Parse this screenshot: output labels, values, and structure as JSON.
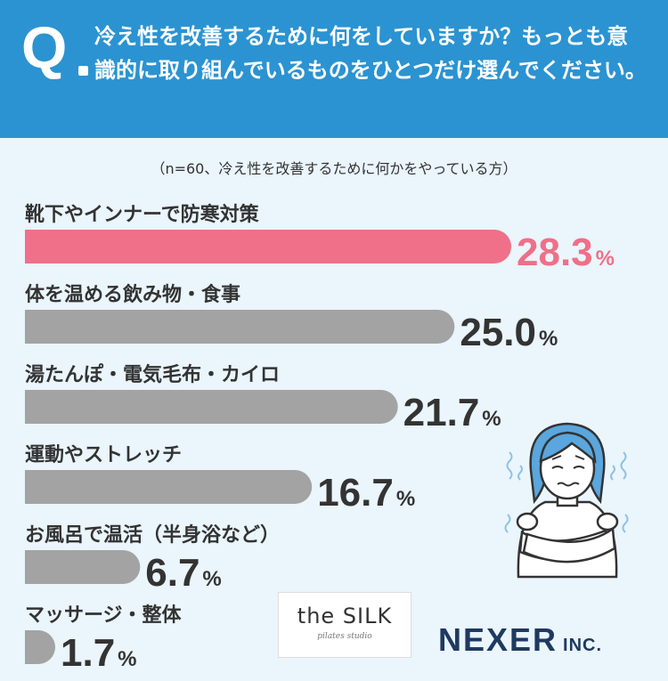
{
  "header": {
    "q_mark": "Q",
    "question": "冷え性を改善するために何をしていますか？もっとも意識的に取り組んでいるものをひとつだけ選んでください。"
  },
  "sample_note": "（n=60、冷え性を改善するために何かをやっている方）",
  "colors": {
    "header_bg": "#2b93d1",
    "page_bg": "#eaf5fc",
    "highlight": "#ef7088",
    "bar_default": "#a3a3a3",
    "brand_navy": "#1f3a5f"
  },
  "chart_data": {
    "type": "bar",
    "orientation": "horizontal",
    "categories": [
      "靴下やインナーで防寒対策",
      "体を温める飲み物・食事",
      "湯たんぽ・電気毛布・カイロ",
      "運動やストレッチ",
      "お風呂で温活（半身浴など）",
      "マッサージ・整体"
    ],
    "values": [
      28.3,
      25.0,
      21.7,
      16.7,
      6.7,
      1.7
    ],
    "value_labels": [
      "28.3",
      "25.0",
      "21.7",
      "16.7",
      "6.7",
      "1.7"
    ],
    "unit": "%",
    "highlight_index": 0
  },
  "logos": {
    "silk_main": "the SILK",
    "silk_sub": "pilates studio",
    "nexer": "NEXER",
    "nexer_suffix": "INC."
  },
  "illustration_icon": "cold-shivering-person-icon"
}
